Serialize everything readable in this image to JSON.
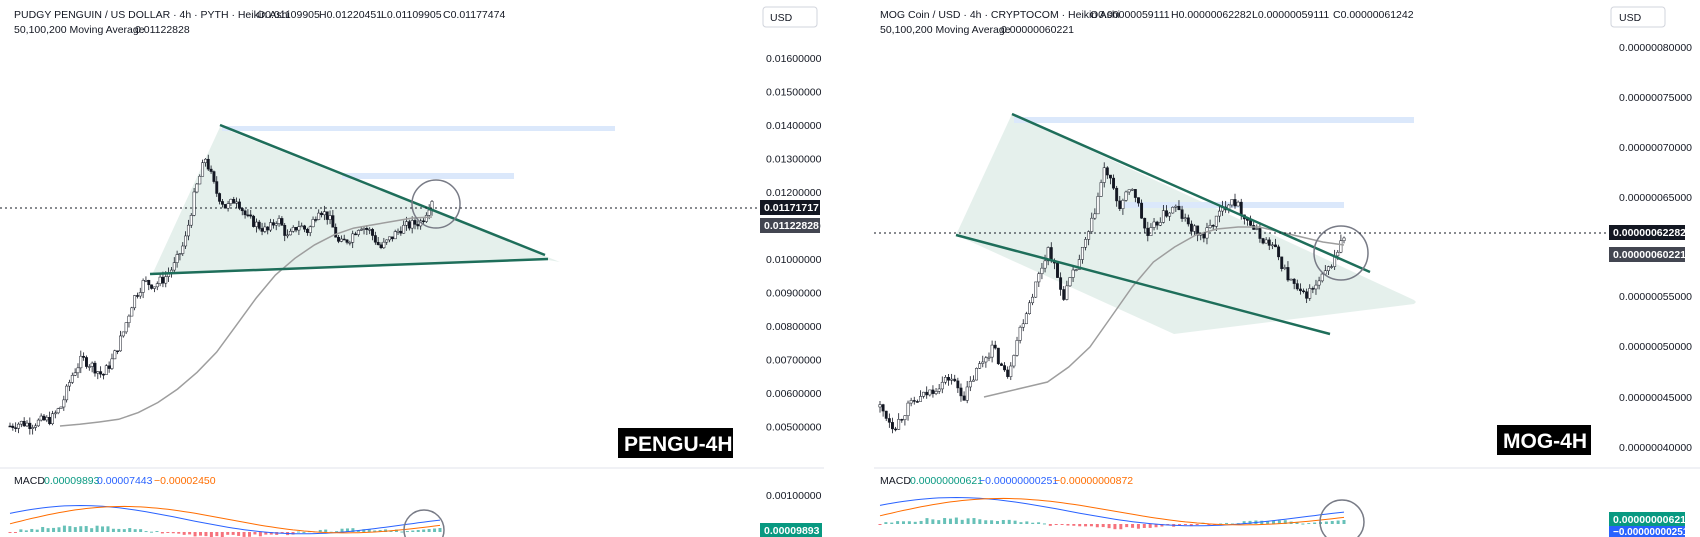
{
  "charts": [
    {
      "header": {
        "title": "PUDGY PENGUIN / US DOLLAR · 4h · PYTH · Heikin Ashi",
        "ohlc": [
          "O0.01109905",
          "H0.01220451",
          "L0.01109905",
          "C0.01177474"
        ],
        "ma": "50,100,200 Moving Average",
        "ma_value": "0.01122828"
      },
      "currency": "USD",
      "price_tag": "0.01171717",
      "ma_tag": "0.01122828",
      "symbol_label": "PENGU-4H",
      "y_ticks": [
        "0.01600000",
        "0.01500000",
        "0.01400000",
        "0.01300000",
        "0.01200000",
        "0.01100000",
        "0.01000000",
        "0.00900000",
        "0.00800000",
        "0.00700000",
        "0.00600000",
        "0.00500000"
      ],
      "macd": {
        "label": "MACD",
        "v1": "0.00009893",
        "v2": "0.00007443",
        "v3": "−0.00002450",
        "axis_tick": "0.00100000",
        "tag": "0.00009893"
      }
    },
    {
      "header": {
        "title": "MOG Coin / USD · 4h · CRYPTOCOM · Heikin Ashi",
        "ohlc": [
          "O0.00000059111",
          "H0.00000062282",
          "L0.00000059111",
          "C0.00000061242"
        ],
        "ma": "50,100,200 Moving Average",
        "ma_value": "0.00000060221"
      },
      "currency": "USD",
      "price_tag": "0.00000062282",
      "ma_tag": "0.00000060221",
      "symbol_label": "MOG-4H",
      "y_ticks": [
        "0.00000080000",
        "0.00000075000",
        "0.00000070000",
        "0.00000065000",
        "0.00000055000",
        "0.00000050000",
        "0.00000045000",
        "0.00000040000"
      ],
      "macd": {
        "label": "MACD",
        "v1": "0.00000000621",
        "v2": "−0.00000000251",
        "v3": "−0.00000000872",
        "tag": "0.00000000621",
        "tag2": "−0.00000000251"
      }
    }
  ],
  "chart_data": [
    {
      "type": "candlestick",
      "title": "PUDGY PENGUIN / US DOLLAR · 4h · PYTH · Heikin Ashi",
      "ylim": [
        0.0046,
        0.0166
      ],
      "close_path": [
        0.005,
        0.0051,
        0.00505,
        0.00515,
        0.0052,
        0.0056,
        0.0065,
        0.007,
        0.0068,
        0.0065,
        0.007,
        0.0078,
        0.0088,
        0.0093,
        0.0092,
        0.0094,
        0.0098,
        0.0105,
        0.012,
        0.013,
        0.012,
        0.0115,
        0.0118,
        0.0112,
        0.011,
        0.0108,
        0.0112,
        0.0106,
        0.011,
        0.0108,
        0.0115,
        0.0112,
        0.0104,
        0.0106,
        0.011,
        0.0108,
        0.0103,
        0.0106,
        0.0109,
        0.011,
        0.0111,
        0.01177
      ],
      "moving_average": [
        0.005,
        0.00505,
        0.00512,
        0.0052,
        0.0054,
        0.0057,
        0.0061,
        0.0066,
        0.0072,
        0.008,
        0.0088,
        0.0095,
        0.01,
        0.0104,
        0.0107,
        0.0109,
        0.011,
        0.0111,
        0.0112,
        0.01123
      ],
      "pattern": "symmetrical triangle",
      "resistance_line": [
        0.0142,
        0.0104
      ],
      "support_line": [
        0.0098,
        0.0102
      ],
      "current_price": 0.01171717,
      "ma_value": 0.01122828
    },
    {
      "type": "candlestick",
      "title": "MOG Coin / USD · 4h · CRYPTOCOM · Heikin Ashi",
      "ylim": [
        4e-07,
        8.2e-07
      ],
      "close_path": [
        4.4e-07,
        4.2e-07,
        4.4e-07,
        4.5e-07,
        4.6e-07,
        4.7e-07,
        4.5e-07,
        4.8e-07,
        5e-07,
        4.7e-07,
        5.2e-07,
        5.6e-07,
        6e-07,
        5.5e-07,
        5.8e-07,
        6.2e-07,
        6.8e-07,
        6.4e-07,
        6.6e-07,
        6.1e-07,
        6.3e-07,
        6.4e-07,
        6.2e-07,
        6.1e-07,
        6.3e-07,
        6.5e-07,
        6.3e-07,
        6.1e-07,
        6e-07,
        5.7e-07,
        5.5e-07,
        5.6e-07,
        5.8e-07,
        6.1e-07
      ],
      "moving_average": [
        4.5e-07,
        4.55e-07,
        4.6e-07,
        4.65e-07,
        4.8e-07,
        5e-07,
        5.3e-07,
        5.6e-07,
        5.85e-07,
        6e-07,
        6.12e-07,
        6.18e-07,
        6.2e-07,
        6.2e-07,
        6.15e-07,
        6.1e-07,
        6.05e-07,
        6.02e-07
      ],
      "pattern": "falling wedge",
      "resistance_line": [
        7.4e-07,
        6e-07
      ],
      "support_line": [
        6.2e-07,
        5.3e-07
      ],
      "current_price": 6.2282e-07,
      "ma_value": 6.0221e-07
    }
  ],
  "colors": {
    "up": "#089981",
    "down": "#f23645",
    "trendline": "#1e6e5a",
    "triangle_fill": "#dcebe6",
    "ma": "#9e9e9e",
    "macd_line": "#2962ff",
    "signal_line": "#ff6d00",
    "label_bg": "#000000",
    "tag_dark": "#131722",
    "tag_gray": "#434651"
  }
}
